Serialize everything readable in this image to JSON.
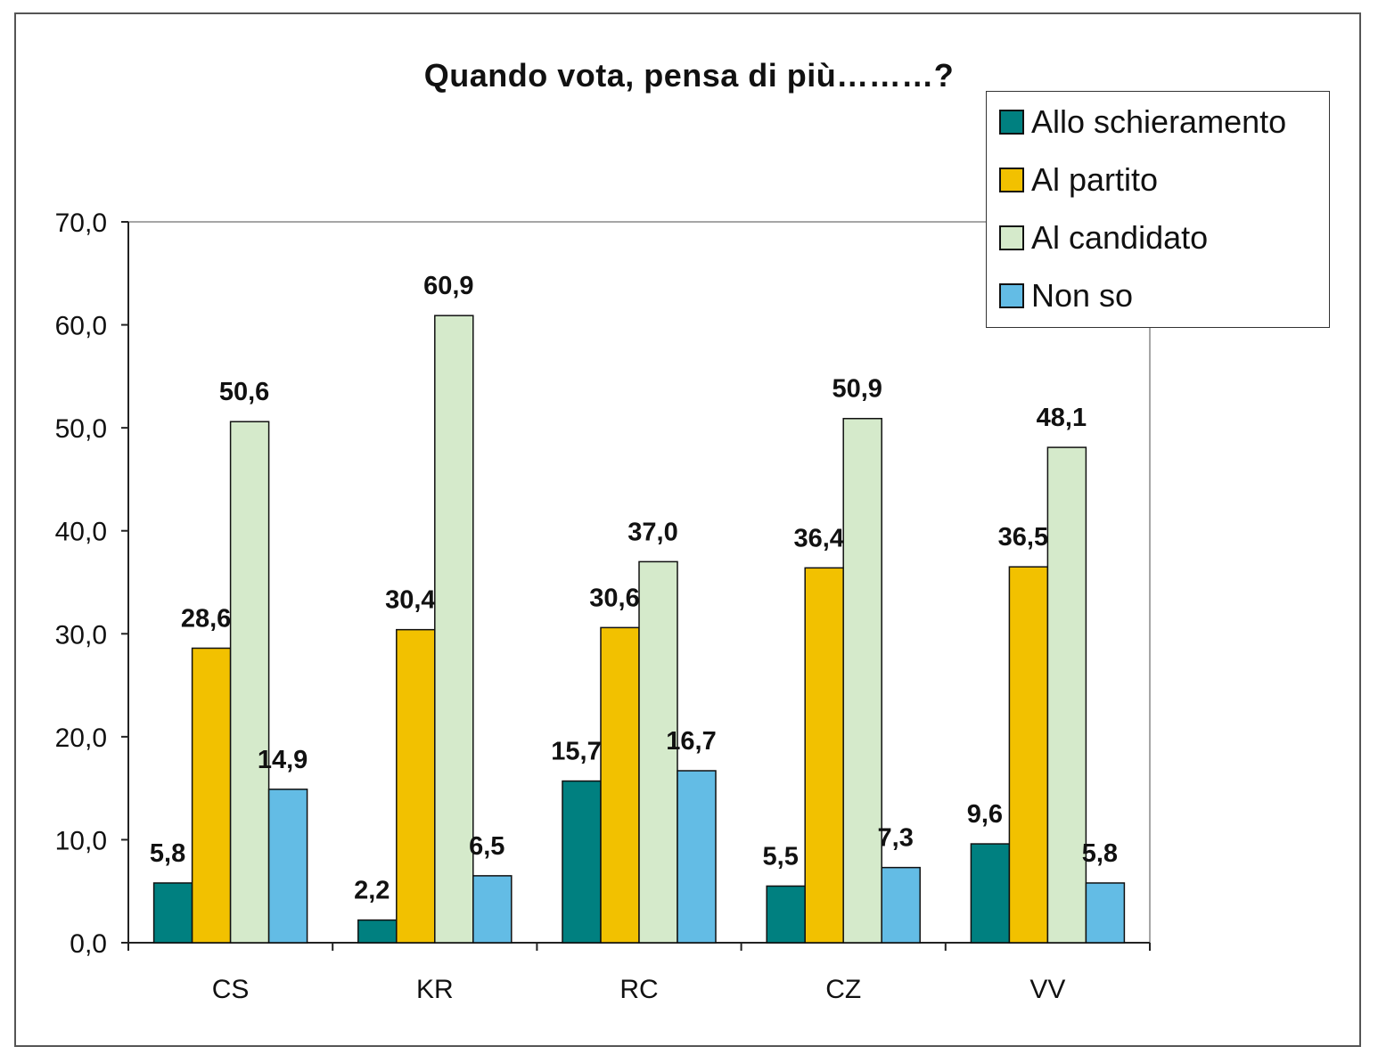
{
  "chart_data": {
    "type": "bar",
    "title": "Quando vota, pensa di più………?",
    "xlabel": "",
    "ylabel": "",
    "categories": [
      "CS",
      "KR",
      "RC",
      "CZ",
      "VV"
    ],
    "series": [
      {
        "name": "Allo schieramento",
        "color": "#008080",
        "values": [
          5.8,
          2.2,
          15.7,
          5.5,
          9.6
        ],
        "labels": [
          "5,8",
          "2,2",
          "15,7",
          "5,5",
          "9,6"
        ]
      },
      {
        "name": "Al partito",
        "color": "#F2C100",
        "values": [
          28.6,
          30.4,
          30.6,
          36.4,
          36.5
        ],
        "labels": [
          "28,6",
          "30,4",
          "30,6",
          "36,4",
          "36,5"
        ]
      },
      {
        "name": "Al candidato",
        "color": "#D5EACB",
        "values": [
          50.6,
          60.9,
          37.0,
          50.9,
          48.1
        ],
        "labels": [
          "50,6",
          "60,9",
          "37,0",
          "50,9",
          "48,1"
        ]
      },
      {
        "name": "Non so",
        "color": "#63BCE5",
        "values": [
          14.9,
          6.5,
          16.7,
          7.3,
          5.8
        ],
        "labels": [
          "14,9",
          "6,5",
          "16,7",
          "7,3",
          "5,8"
        ]
      }
    ],
    "ylim": [
      0,
      70
    ],
    "yticks": [
      0,
      10,
      20,
      30,
      40,
      50,
      60,
      70
    ],
    "ytick_labels": [
      "0,0",
      "10,0",
      "20,0",
      "30,0",
      "40,0",
      "50,0",
      "60,0",
      "70,0"
    ],
    "grid": false,
    "legend_position": "top-right"
  }
}
